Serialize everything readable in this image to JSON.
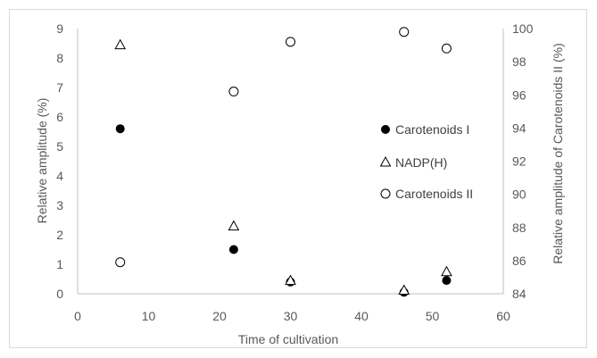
{
  "chart_data": {
    "type": "scatter",
    "xlabel": "Time of cultivation",
    "ylabel": "Relative amplitude (%)",
    "y2label": "Relative amplitude of Carotenoids II (%)",
    "xlim": [
      0,
      60
    ],
    "ylim": [
      0,
      9
    ],
    "y2lim": [
      84,
      100
    ],
    "x_ticks": [
      "0",
      "10",
      "20",
      "30",
      "40",
      "50",
      "60"
    ],
    "y_ticks": [
      "0",
      "1",
      "2",
      "3",
      "4",
      "5",
      "6",
      "7",
      "8",
      "9"
    ],
    "y2_ticks": [
      "84",
      "86",
      "88",
      "90",
      "92",
      "94",
      "96",
      "98",
      "100"
    ],
    "grid": false,
    "legend_position": "right",
    "series": [
      {
        "name": "Carotenoids I",
        "marker": "filled-circle",
        "axis": "left",
        "points": [
          {
            "x": 6,
            "y": 5.6
          },
          {
            "x": 22,
            "y": 1.5
          },
          {
            "x": 30,
            "y": 0.4
          },
          {
            "x": 46,
            "y": 0.05
          },
          {
            "x": 52,
            "y": 0.45
          }
        ]
      },
      {
        "name": "NADP(H)",
        "marker": "open-triangle",
        "axis": "left",
        "points": [
          {
            "x": 6,
            "y": 8.45
          },
          {
            "x": 22,
            "y": 2.3
          },
          {
            "x": 30,
            "y": 0.45
          },
          {
            "x": 46,
            "y": 0.12
          },
          {
            "x": 52,
            "y": 0.75
          }
        ]
      },
      {
        "name": "Carotenoids II",
        "marker": "open-circle",
        "axis": "right",
        "points": [
          {
            "x": 6,
            "y": 85.9
          },
          {
            "x": 22,
            "y": 96.2
          },
          {
            "x": 30,
            "y": 99.2
          },
          {
            "x": 46,
            "y": 99.8
          },
          {
            "x": 52,
            "y": 98.8
          }
        ]
      }
    ],
    "colors": {
      "marker": "#000000",
      "axis": "#bfbfbf",
      "text": "#595959"
    }
  }
}
